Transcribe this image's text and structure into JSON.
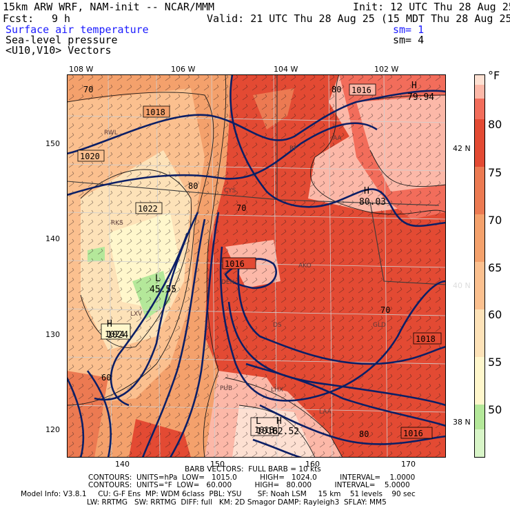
{
  "header": {
    "model_title": "15km ARW WRF, NAM-init -- NCAR/MMM",
    "init": "Init: 12 UTC Thu 28 Aug 25",
    "fcst_label": "Fcst:",
    "fcst_value": "9 h",
    "valid": "Valid: 21 UTC Thu 28 Aug 25 (15 MDT Thu 28 Aug 25)",
    "field1": "Surface air temperature",
    "field1_sm": "sm= 1",
    "field2": "Sea-level pressure",
    "field2_sm": "sm= 4",
    "field3": "<U10,V10> Vectors"
  },
  "axes": {
    "top_lon": [
      "108 W",
      "106 W",
      "104 W",
      "102 W"
    ],
    "left": [
      "150",
      "140",
      "130",
      "120"
    ],
    "bottom": [
      "140",
      "150",
      "160",
      "170"
    ],
    "right_lat": [
      "42 N",
      "40 N",
      "38 N"
    ]
  },
  "colorbar": {
    "unit": "°F",
    "labels": [
      "80",
      "75",
      "70",
      "65",
      "60",
      "55",
      "50"
    ],
    "colors": [
      "#d8f5c8",
      "#b4e89a",
      "#fff7cc",
      "#fde2b8",
      "#fbc08f",
      "#f4a16c",
      "#ec7a52",
      "#e34a33",
      "#f26d5b",
      "#fcb8a8",
      "#fde0d2"
    ]
  },
  "map_labels": {
    "isobars": [
      "1018",
      "1020",
      "1022",
      "1016",
      "1016",
      "1024",
      "1018",
      "1018",
      "1016"
    ],
    "temps": [
      "70",
      "80",
      "80",
      "70",
      "70",
      "60",
      "80"
    ],
    "extrema": [
      {
        "letter": "H",
        "value": "79.94"
      },
      {
        "letter": "H",
        "value": "80.03"
      },
      {
        "letter": "L",
        "value": "45.55"
      },
      {
        "letter": "H",
        "value": "1024"
      },
      {
        "letter": "L",
        "value": "1016"
      },
      {
        "letter": "H",
        "value": "82.52"
      }
    ],
    "stations": [
      "RWL",
      "RF",
      "AA",
      "CYS",
      "RKS",
      "DEN",
      "AKO",
      "LXV",
      "DS",
      "GLD",
      "PUB",
      "LHX",
      "LAA"
    ]
  },
  "footer": {
    "barb": "BARB VECTORS:  FULL BARB = 10 kts",
    "contours1": "CONTOURS:  UNITS=hPa  LOW=   1015.0          HIGH=   1024.0          INTERVAL=    1.0000",
    "contours2": "CONTOURS:  UNITS=°F  LOW=   60.000          HIGH=   80.000          INTERVAL=    5.0000",
    "model1": "Model Info: V3.8.1     CU: G-F Ens  MP: WDM 6class  PBL: YSU       SF: Noah LSM     15 km    51 levels    90 sec",
    "model2": "LW: RRTMG   SW: RRTMG  DIFF: full   KM: 2D Smagor DAMP: Rayleigh3  SFLAY: MM5"
  }
}
